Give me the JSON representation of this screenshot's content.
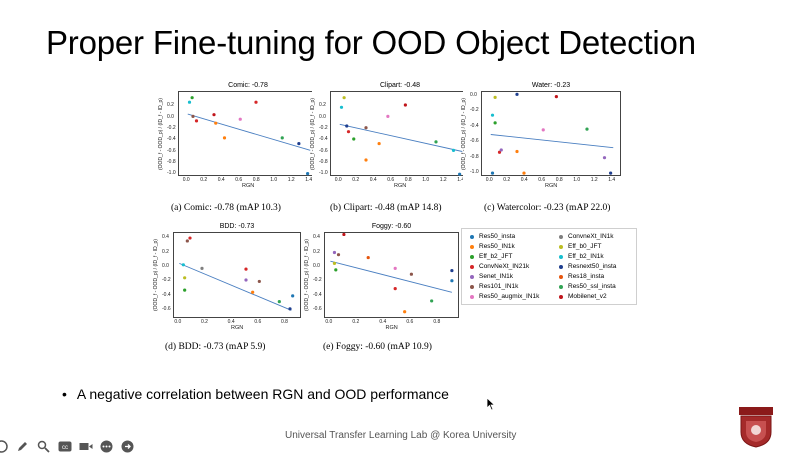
{
  "slide": {
    "title": "Proper Fine-tuning for OOD Object Detection",
    "bullet": "A negative correlation between RGN and OOD performance",
    "footer": "Universal Transfer Learning Lab @ Korea University"
  },
  "colors": {
    "trend_line": "#4a7fc1",
    "Res50_insta": "#1f77b4",
    "ConvneXt_IN1k": "#7f7f7f",
    "Res50_IN1k": "#ff7f0e",
    "Eff_b0_JFT": "#bcbd22",
    "Eff_b2_JFT": "#2ca02c",
    "Eff_b2_IN1k": "#17becf",
    "ConvNeXt_IN21k": "#d62728",
    "Resnext50_insta": "#1f3f8f",
    "Senet_IN1k": "#9467bd",
    "Res18_insta": "#e6550d",
    "Res101_IN1k": "#8c564b",
    "Res50_ssl_insta": "#31a354",
    "Res50_augmix_IN1k": "#e377c2",
    "Mobilenet_v2": "#c0151b"
  },
  "legend": [
    {
      "name": "Res50_insta",
      "key": "Res50_insta"
    },
    {
      "name": "ConvneXt_IN1k",
      "key": "ConvneXt_IN1k"
    },
    {
      "name": "Res50_IN1k",
      "key": "Res50_IN1k"
    },
    {
      "name": "Eff_b0_JFT",
      "key": "Eff_b0_JFT"
    },
    {
      "name": "Eff_b2_JFT",
      "key": "Eff_b2_JFT"
    },
    {
      "name": "Eff_b2_IN1k",
      "key": "Eff_b2_IN1k"
    },
    {
      "name": "ConvNeXt_IN21k",
      "key": "ConvNeXt_IN21k"
    },
    {
      "name": "Resnext50_insta",
      "key": "Resnext50_insta"
    },
    {
      "name": "Senet_IN1k",
      "key": "Senet_IN1k"
    },
    {
      "name": "Res18_insta",
      "key": "Res18_insta"
    },
    {
      "name": "Res101_IN1k",
      "key": "Res101_IN1k"
    },
    {
      "name": "Res50_ssl_insta",
      "key": "Res50_ssl_insta"
    },
    {
      "name": "Res50_augmix_IN1k",
      "key": "Res50_augmix_IN1k"
    },
    {
      "name": "Mobilenet_v2",
      "key": "Mobilenet_v2"
    }
  ],
  "chart_data": [
    {
      "type": "scatter",
      "title": "Comic: -0.78",
      "caption": "(a) Comic: -0.78 (mAP 10.3)",
      "xlabel": "RGN",
      "ylabel": "(OOD_f - OOD_p) / (ID_f - ID_p)",
      "xlim": [
        -0.1,
        1.5
      ],
      "ylim": [
        -1.05,
        0.45
      ],
      "xticks": [
        0.0,
        0.2,
        0.4,
        0.6,
        0.8,
        1.0,
        1.2,
        1.4
      ],
      "yticks": [
        -1.0,
        -0.8,
        -0.6,
        -0.4,
        -0.2,
        0.0,
        0.2
      ],
      "trend": [
        [
          0.0,
          0.06
        ],
        [
          1.4,
          -0.58
        ]
      ],
      "points": [
        {
          "x": 0.05,
          "y": 0.35,
          "s": "Eff_b2_JFT"
        },
        {
          "x": 0.02,
          "y": 0.27,
          "s": "Eff_b2_IN1k"
        },
        {
          "x": 0.06,
          "y": 0.02,
          "s": "Res101_IN1k"
        },
        {
          "x": 0.1,
          "y": -0.06,
          "s": "ConvNeXt_IN21k"
        },
        {
          "x": 0.3,
          "y": 0.05,
          "s": "Mobilenet_v2"
        },
        {
          "x": 0.32,
          "y": -0.1,
          "s": "Res50_IN1k"
        },
        {
          "x": 0.42,
          "y": -0.36,
          "s": "Res50_IN1k"
        },
        {
          "x": 0.6,
          "y": -0.03,
          "s": "Res50_augmix_IN1k"
        },
        {
          "x": 0.78,
          "y": 0.27,
          "s": "ConvNeXt_IN21k"
        },
        {
          "x": 1.08,
          "y": -0.36,
          "s": "Res50_ssl_insta"
        },
        {
          "x": 1.27,
          "y": -0.46,
          "s": "Resnext50_insta"
        },
        {
          "x": 1.37,
          "y": -0.99,
          "s": "Res50_insta"
        }
      ]
    },
    {
      "type": "scatter",
      "title": "Clipart: -0.48",
      "caption": "(b) Clipart: -0.48 (mAP 14.8)",
      "xlabel": "RGN",
      "ylabel": "(OOD_f - OOD_p) / (ID_f - ID_p)",
      "xlim": [
        -0.1,
        1.5
      ],
      "ylim": [
        -1.05,
        0.45
      ],
      "xticks": [
        0.0,
        0.2,
        0.4,
        0.6,
        0.8,
        1.0,
        1.2,
        1.4
      ],
      "yticks": [
        -1.0,
        -0.8,
        -0.6,
        -0.4,
        -0.2,
        0.0,
        0.2
      ],
      "trend": [
        [
          0.0,
          -0.12
        ],
        [
          1.4,
          -0.6
        ]
      ],
      "points": [
        {
          "x": 0.05,
          "y": 0.35,
          "s": "Eff_b0_JFT"
        },
        {
          "x": 0.02,
          "y": 0.18,
          "s": "Eff_b2_IN1k"
        },
        {
          "x": 0.08,
          "y": -0.15,
          "s": "Resnext50_insta"
        },
        {
          "x": 0.1,
          "y": -0.25,
          "s": "ConvNeXt_IN21k"
        },
        {
          "x": 0.16,
          "y": -0.38,
          "s": "Eff_b2_JFT"
        },
        {
          "x": 0.3,
          "y": -0.18,
          "s": "Res101_IN1k"
        },
        {
          "x": 0.3,
          "y": -0.75,
          "s": "Res50_IN1k"
        },
        {
          "x": 0.45,
          "y": -0.46,
          "s": "Res50_IN1k"
        },
        {
          "x": 0.55,
          "y": 0.02,
          "s": "Res50_augmix_IN1k"
        },
        {
          "x": 0.75,
          "y": 0.22,
          "s": "Mobilenet_v2"
        },
        {
          "x": 1.1,
          "y": -0.43,
          "s": "Res50_ssl_insta"
        },
        {
          "x": 1.3,
          "y": -0.58,
          "s": "Eff_b2_IN1k"
        },
        {
          "x": 1.37,
          "y": -1.0,
          "s": "Res50_insta"
        }
      ]
    },
    {
      "type": "scatter",
      "title": "Water: -0.23",
      "caption": "(c) Watercolor: -0.23 (mAP 22.0)",
      "xlabel": "RGN",
      "ylabel": "(OOD_f - OOD_p) / (ID_f - ID_p)",
      "xlim": [
        -0.1,
        1.5
      ],
      "ylim": [
        -1.05,
        0.05
      ],
      "xticks": [
        0.0,
        0.2,
        0.4,
        0.6,
        0.8,
        1.0,
        1.2,
        1.4
      ],
      "yticks": [
        -1.0,
        -0.8,
        -0.6,
        -0.4,
        -0.2,
        0.0
      ],
      "trend": [
        [
          0.0,
          -0.5
        ],
        [
          1.4,
          -0.67
        ]
      ],
      "points": [
        {
          "x": 0.05,
          "y": -0.02,
          "s": "Eff_b0_JFT"
        },
        {
          "x": 0.02,
          "y": -0.25,
          "s": "Eff_b2_IN1k"
        },
        {
          "x": 0.05,
          "y": -0.35,
          "s": "Eff_b2_JFT"
        },
        {
          "x": 0.1,
          "y": -0.73,
          "s": "ConvNeXt_IN21k"
        },
        {
          "x": 0.12,
          "y": -0.7,
          "s": "Senet_IN1k"
        },
        {
          "x": 0.3,
          "y": 0.02,
          "s": "Resnext50_insta"
        },
        {
          "x": 0.3,
          "y": -0.72,
          "s": "Res50_IN1k"
        },
        {
          "x": 0.38,
          "y": -1.0,
          "s": "Res50_IN1k"
        },
        {
          "x": 0.6,
          "y": -0.44,
          "s": "Res50_augmix_IN1k"
        },
        {
          "x": 0.75,
          "y": -0.01,
          "s": "Mobilenet_v2"
        },
        {
          "x": 1.1,
          "y": -0.43,
          "s": "Res50_ssl_insta"
        },
        {
          "x": 1.3,
          "y": -0.8,
          "s": "Senet_IN1k"
        },
        {
          "x": 1.37,
          "y": -1.0,
          "s": "Resnext50_insta"
        },
        {
          "x": 0.02,
          "y": -1.0,
          "s": "Res50_insta"
        }
      ]
    },
    {
      "type": "scatter",
      "title": "BDD: -0.73",
      "caption": "(d) BDD: -0.73 (mAP 5.9)",
      "xlabel": "RGN",
      "ylabel": "(OOD_f - OOD_p) / (ID_f - ID_p)",
      "xlim": [
        -0.04,
        0.92
      ],
      "ylim": [
        -0.72,
        0.47
      ],
      "xticks": [
        0.0,
        0.2,
        0.4,
        0.6,
        0.8
      ],
      "yticks": [
        -0.6,
        -0.4,
        -0.2,
        0.0,
        0.2,
        0.4
      ],
      "trend": [
        [
          0.0,
          0.05
        ],
        [
          0.84,
          -0.6
        ]
      ],
      "points": [
        {
          "x": 0.06,
          "y": 0.36,
          "s": "Res101_IN1k"
        },
        {
          "x": 0.08,
          "y": 0.4,
          "s": "ConvNeXt_IN21k"
        },
        {
          "x": 0.03,
          "y": 0.03,
          "s": "Eff_b2_IN1k"
        },
        {
          "x": 0.04,
          "y": -0.15,
          "s": "Eff_b0_JFT"
        },
        {
          "x": 0.04,
          "y": -0.32,
          "s": "Eff_b2_JFT"
        },
        {
          "x": 0.17,
          "y": -0.02,
          "s": "ConvneXt_IN1k"
        },
        {
          "x": 0.5,
          "y": -0.03,
          "s": "ConvNeXt_IN21k"
        },
        {
          "x": 0.5,
          "y": -0.18,
          "s": "Senet_IN1k"
        },
        {
          "x": 0.55,
          "y": -0.35,
          "s": "Res50_IN1k"
        },
        {
          "x": 0.6,
          "y": -0.2,
          "s": "Res101_IN1k"
        },
        {
          "x": 0.75,
          "y": -0.48,
          "s": "Res50_ssl_insta"
        },
        {
          "x": 0.85,
          "y": -0.4,
          "s": "Res50_insta"
        },
        {
          "x": 0.83,
          "y": -0.58,
          "s": "Resnext50_insta"
        }
      ]
    },
    {
      "type": "scatter",
      "title": "Foggy: -0.60",
      "caption": "(e) Foggy: -0.60 (mAP 10.9)",
      "xlabel": "RGN",
      "ylabel": "(OOD_f - OOD_p) / (ID_f - ID_p)",
      "xlim": [
        -0.04,
        0.96
      ],
      "ylim": [
        -0.72,
        0.47
      ],
      "xticks": [
        0.0,
        0.2,
        0.4,
        0.6,
        0.8
      ],
      "yticks": [
        -0.6,
        -0.4,
        -0.2,
        0.0,
        0.2,
        0.4
      ],
      "trend": [
        [
          0.0,
          0.08
        ],
        [
          0.9,
          -0.35
        ]
      ],
      "points": [
        {
          "x": 0.1,
          "y": 0.45,
          "s": "Mobilenet_v2"
        },
        {
          "x": 0.03,
          "y": 0.2,
          "s": "Senet_IN1k"
        },
        {
          "x": 0.06,
          "y": 0.17,
          "s": "Res101_IN1k"
        },
        {
          "x": 0.03,
          "y": 0.05,
          "s": "Eff_b0_JFT"
        },
        {
          "x": 0.04,
          "y": -0.04,
          "s": "Eff_b2_JFT"
        },
        {
          "x": 0.28,
          "y": 0.13,
          "s": "Res18_insta"
        },
        {
          "x": 0.48,
          "y": -0.02,
          "s": "Res50_augmix_IN1k"
        },
        {
          "x": 0.48,
          "y": -0.3,
          "s": "ConvNeXt_IN21k"
        },
        {
          "x": 0.55,
          "y": -0.62,
          "s": "Res50_IN1k"
        },
        {
          "x": 0.6,
          "y": -0.1,
          "s": "Res101_IN1k"
        },
        {
          "x": 0.75,
          "y": -0.47,
          "s": "Res50_ssl_insta"
        },
        {
          "x": 0.9,
          "y": -0.05,
          "s": "Resnext50_insta"
        },
        {
          "x": 0.9,
          "y": -0.19,
          "s": "Res50_insta"
        }
      ]
    }
  ]
}
